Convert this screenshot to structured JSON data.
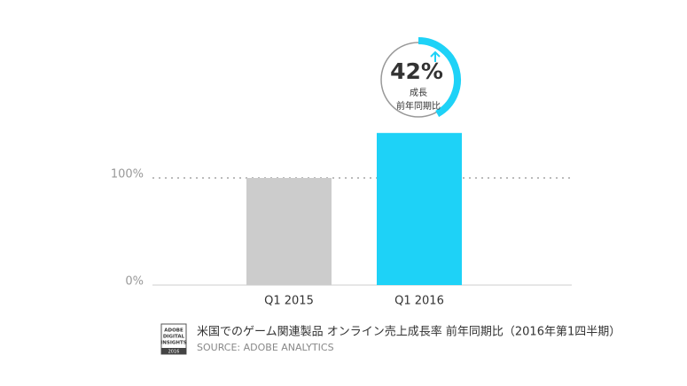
{
  "chart_data": {
    "type": "bar",
    "categories": [
      "Q1 2015",
      "Q1 2016"
    ],
    "values": [
      100,
      142
    ],
    "colors": [
      "#cccccc",
      "#1ed2f7"
    ],
    "ylim": [
      0,
      160
    ],
    "yticks": [
      {
        "value": 0,
        "label": "0%"
      },
      {
        "value": 100,
        "label": "100%"
      }
    ],
    "grid": true,
    "annotation": {
      "value": 42,
      "label": "42%",
      "lines": [
        "成長",
        "前年同期比"
      ]
    },
    "caption": "米国でのゲーム関連製品 オンライン売上成長率 前年同期比（2016年第1四半期）",
    "source": "SOURCE: ADOBE ANALYTICS",
    "badge": {
      "lines": [
        "ADOBE",
        "DIGITAL",
        "INSIGHTS"
      ],
      "year": "2016"
    }
  }
}
